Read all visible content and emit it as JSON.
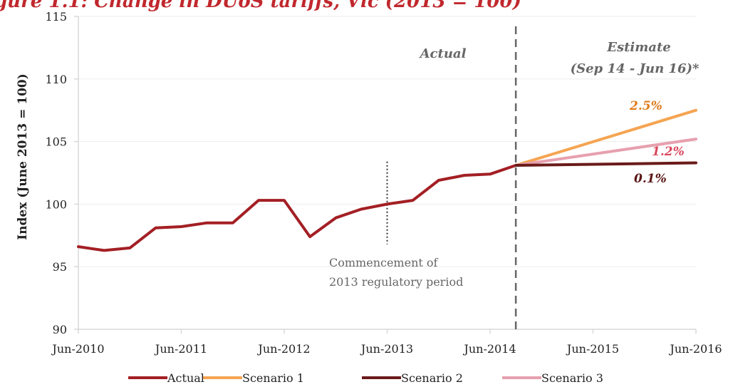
{
  "chart_data": {
    "type": "line",
    "title": "gure 1.1: Change in DUoS tariffs, Vic (2013 = 100)",
    "ylabel": "Index (June 2013 = 100)",
    "ylim": [
      90,
      115
    ],
    "yticks": [
      90,
      95,
      100,
      105,
      110,
      115
    ],
    "x_tick_labels": [
      "Jun-2010",
      "Jun-2011",
      "Jun-2012",
      "Jun-2013",
      "Jun-2014",
      "Jun-2015",
      "Jun-2016"
    ],
    "x_start": "2010-06",
    "x_end": "2016-06",
    "grid": "horizontal",
    "legend_position": "bottom",
    "annotations": {
      "actual": "Actual",
      "estimate_line1": "Estimate",
      "estimate_line2": "(Sep 14 - Jun 16)*",
      "commencement_line1": "Commencement of",
      "commencement_line2": "2013 regulatory period",
      "estimate_start": "2014-09",
      "commencement_date": "2013-06"
    },
    "series": [
      {
        "name": "Actual",
        "color": "#a31f24",
        "x": [
          "2010-06",
          "2010-09",
          "2010-12",
          "2011-03",
          "2011-06",
          "2011-09",
          "2011-12",
          "2012-03",
          "2012-06",
          "2012-09",
          "2012-12",
          "2013-03",
          "2013-06",
          "2013-09",
          "2013-12",
          "2014-03",
          "2014-06",
          "2014-09"
        ],
        "values": [
          96.6,
          96.3,
          96.5,
          98.1,
          98.2,
          98.5,
          98.5,
          100.3,
          100.3,
          97.4,
          98.9,
          99.6,
          100.0,
          100.3,
          101.9,
          102.3,
          102.4,
          103.1
        ]
      },
      {
        "name": "Scenario 1",
        "color": "#f5a452",
        "label": "2.5%",
        "label_color": "#e07b1a",
        "x": [
          "2014-09",
          "2016-06"
        ],
        "values": [
          103.1,
          107.5
        ]
      },
      {
        "name": "Scenario 2",
        "color": "#6b1a1a",
        "label": "0.1%",
        "label_color": "#5a1515",
        "x": [
          "2014-09",
          "2016-06"
        ],
        "values": [
          103.1,
          103.3
        ]
      },
      {
        "name": "Scenario 3",
        "color": "#e7a0ae",
        "label": "1.2%",
        "label_color": "#d9475e",
        "x": [
          "2014-09",
          "2016-06"
        ],
        "values": [
          103.1,
          105.2
        ]
      }
    ]
  }
}
